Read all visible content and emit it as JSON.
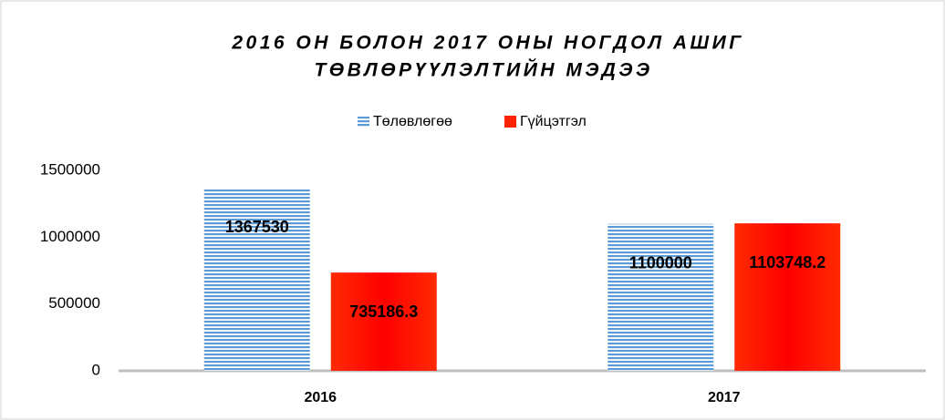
{
  "chart_data": {
    "type": "bar",
    "title": [
      "2016 ОН БОЛОН 2017 ОНЫ НОГДОЛ АШИГ",
      "ТӨВЛӨРҮҮЛЭЛТИЙН МЭДЭЭ"
    ],
    "categories": [
      "2016",
      "2017"
    ],
    "series": [
      {
        "name": "Төлөвлөгөө",
        "color": "#5b9bd5",
        "values": [
          1367530,
          1100000
        ]
      },
      {
        "name": "Гүйцэтгэл",
        "color": "#ff2200",
        "values": [
          735186.3,
          1103748.2
        ]
      }
    ],
    "ylim": [
      0,
      1500000
    ],
    "yticks": [
      0,
      500000,
      1000000,
      1500000
    ],
    "grid": false,
    "legend": "top"
  }
}
